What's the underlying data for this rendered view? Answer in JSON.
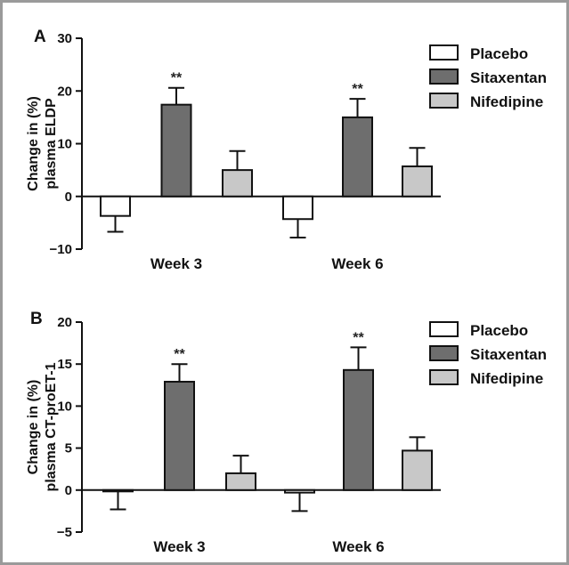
{
  "chart_data": [
    {
      "type": "bar",
      "panel_label": "A",
      "ylabel": [
        "Change in (%)",
        "plasma ELDP"
      ],
      "ylim": [
        -10,
        30
      ],
      "yticks": [
        -10,
        0,
        10,
        20,
        30
      ],
      "categories": [
        "Week 3",
        "Week 6"
      ],
      "series": [
        {
          "name": "Placebo",
          "values": [
            -3.7,
            -4.3
          ],
          "errors": [
            3.0,
            3.5
          ],
          "annotations": [
            "",
            ""
          ]
        },
        {
          "name": "Sitaxentan",
          "values": [
            17.4,
            15.0
          ],
          "errors": [
            3.2,
            3.5
          ],
          "annotations": [
            "**",
            "**"
          ]
        },
        {
          "name": "Nifedipine",
          "values": [
            5.0,
            5.7
          ],
          "errors": [
            3.6,
            3.5
          ],
          "annotations": [
            "",
            ""
          ]
        }
      ],
      "legend": "right"
    },
    {
      "type": "bar",
      "panel_label": "B",
      "ylabel": [
        "Change in (%)",
        "plasma CT-proET-1"
      ],
      "ylim": [
        -5,
        20
      ],
      "yticks": [
        -5,
        0,
        5,
        10,
        15,
        20
      ],
      "categories": [
        "Week 3",
        "Week 6"
      ],
      "series": [
        {
          "name": "Placebo",
          "values": [
            -0.1,
            -0.3
          ],
          "errors": [
            2.2,
            2.2
          ],
          "annotations": [
            "",
            ""
          ]
        },
        {
          "name": "Sitaxentan",
          "values": [
            12.9,
            14.3
          ],
          "errors": [
            2.1,
            2.7
          ],
          "annotations": [
            "**",
            "**"
          ]
        },
        {
          "name": "Nifedipine",
          "values": [
            2.0,
            4.7
          ],
          "errors": [
            2.1,
            1.6
          ],
          "annotations": [
            "",
            ""
          ]
        }
      ],
      "legend": "right"
    }
  ],
  "colors": {
    "Placebo": "#ffffff",
    "Sitaxentan": "#6e6e6e",
    "Nifedipine": "#c8c8c8",
    "stroke": "#111111"
  }
}
